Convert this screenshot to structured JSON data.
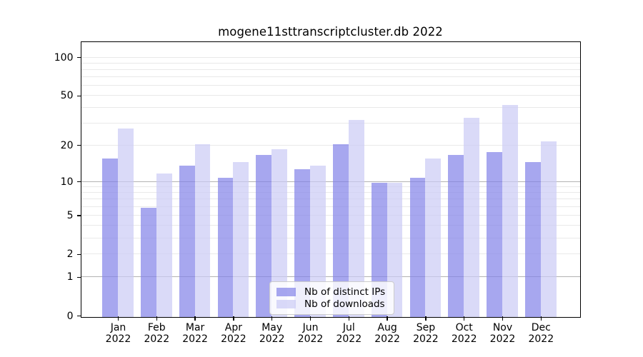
{
  "window": {
    "background": "#ffffff"
  },
  "chart_data": {
    "type": "bar",
    "title": "mogene11sttranscriptcluster.db 2022",
    "year": "2022",
    "months": [
      "Jan",
      "Feb",
      "Mar",
      "Apr",
      "May",
      "Jun",
      "Jul",
      "Aug",
      "Sep",
      "Oct",
      "Nov",
      "Dec"
    ],
    "categories": [
      "Jan 2022",
      "Feb 2022",
      "Mar 2022",
      "Apr 2022",
      "May 2022",
      "Jun 2022",
      "Jul 2022",
      "Aug 2022",
      "Sep 2022",
      "Oct 2022",
      "Nov 2022",
      "Dec 2022"
    ],
    "series": [
      {
        "name": "Nb of distinct IPs",
        "color_hex": "#a8a8ec",
        "fill_rgba": "rgba(130,130,232,0.7)",
        "values": [
          16,
          6,
          14,
          11,
          17,
          13,
          21,
          10,
          11,
          17,
          18,
          15
        ]
      },
      {
        "name": "Nb of downloads",
        "color_hex": "#dadaf8",
        "fill_rgba": "rgba(202,202,245,0.7)",
        "values": [
          28,
          12,
          21,
          15,
          19,
          14,
          33,
          10,
          16,
          34,
          43,
          22
        ]
      }
    ],
    "xlabel": "",
    "ylabel": "",
    "yscale": "log1p",
    "ylim": [
      0,
      132
    ],
    "ytick_labels": [
      "100",
      "50",
      "20",
      "10",
      "5",
      "2",
      "1",
      "0"
    ],
    "ytick_values": [
      100,
      50,
      20,
      10,
      5,
      2,
      1,
      0
    ],
    "grid": "on",
    "grid_major_values": [
      1,
      10
    ],
    "grid_minor_values": [
      2,
      3,
      4,
      5,
      6,
      7,
      8,
      9,
      20,
      30,
      40,
      50,
      60,
      70,
      80,
      90,
      100
    ],
    "legend_position": "lower center",
    "colors": {
      "grid_minor": "#e9e9e9",
      "grid_major": "#b3b3b3",
      "axis": "#000000",
      "legend_border": "#cccccc",
      "text": "#000000"
    }
  }
}
